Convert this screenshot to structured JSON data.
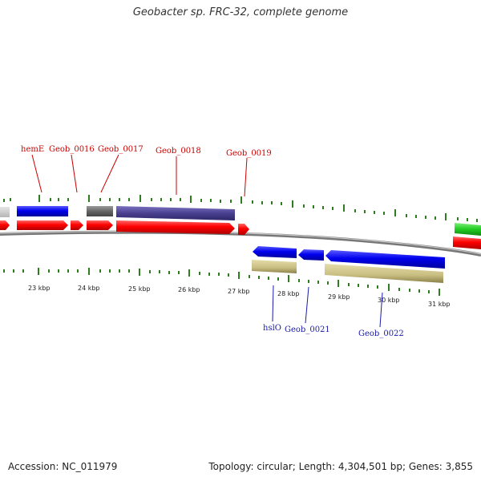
{
  "header": {
    "title": "Geobacter sp. FRC-32, complete genome"
  },
  "footer": {
    "accession": "Accession: NC_011979",
    "summary": "Topology: circular; Length: 4,304,501 bp; Genes: 3,855"
  },
  "colors": {
    "top_label": "#cc0000",
    "bottom_label": "#1a1aaa",
    "tick": "#2e7d1e",
    "backbone": "#888888"
  },
  "genome_axis": {
    "ticks": [
      "23 kbp",
      "24 kbp",
      "25 kbp",
      "26 kbp",
      "27 kbp",
      "28 kbp",
      "29 kbp",
      "30 kbp",
      "31 kbp"
    ]
  },
  "gene_labels": {
    "top": [
      "hemE",
      "Geob_0016",
      "Geob_0017",
      "Geob_0018",
      "Geob_0019"
    ],
    "bottom": [
      "hslO",
      "Geob_0021",
      "Geob_0022"
    ]
  }
}
